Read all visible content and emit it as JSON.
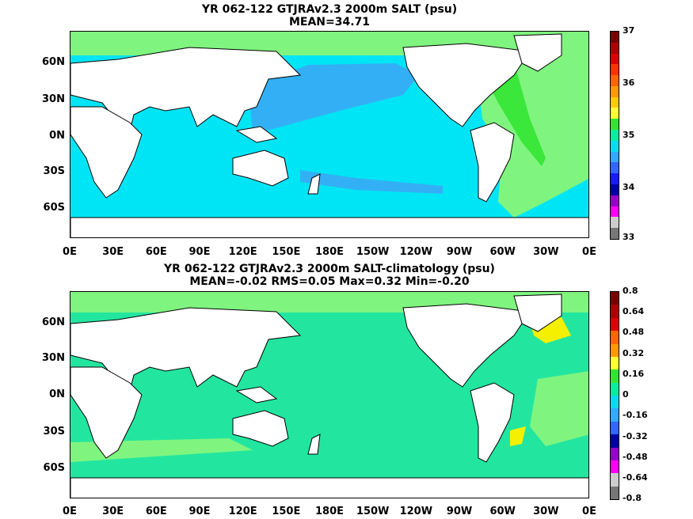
{
  "top_panel": {
    "title_line1": "YR 062-122 GTJRAv2.3 2000m SALT (psu)",
    "title_line2": "MEAN=34.71",
    "colorbar_labels": [
      "37",
      "36",
      "35",
      "34",
      "33"
    ]
  },
  "bottom_panel": {
    "title_line1": "YR 062-122 GTJRAv2.3 2000m SALT-climatology (psu)",
    "title_line2": "MEAN=-0.02   RMS=0.05   Max=0.32   Min=-0.20",
    "colorbar_labels": [
      "0.8",
      "0.64",
      "0.48",
      "0.32",
      "0.16",
      "0",
      "-0.16",
      "-0.32",
      "-0.48",
      "-0.64",
      "-0.8"
    ]
  },
  "lat_labels": [
    "60N",
    "30N",
    "0N",
    "30S",
    "60S"
  ],
  "lon_labels": [
    "0E",
    "30E",
    "60E",
    "90E",
    "120E",
    "150E",
    "180E",
    "150W",
    "120W",
    "90W",
    "60W",
    "30W",
    "0E"
  ],
  "colors": {
    "land": "#ffffff",
    "salt_pacific": "#33b0f5",
    "salt_ocean": "#00e5f5",
    "salt_atlantic": "#7ff57f",
    "salt_green_strip": "#33e533",
    "anom_zero": "#22e6a0",
    "anom_light": "#7ff57f",
    "anom_yellow": "#f5f000",
    "colorbar_top": [
      "#7a0000",
      "#b00000",
      "#e00000",
      "#ff3300",
      "#ff6600",
      "#ff9900",
      "#ffcc00",
      "#ffff33",
      "#33e533",
      "#00f0a0",
      "#00e0f0",
      "#33aaff",
      "#3366ff",
      "#1a1aff",
      "#0000aa",
      "#9900cc",
      "#ff00ff",
      "#cccccc",
      "#777777"
    ],
    "colorbar_bottom": [
      "#7a0000",
      "#b00000",
      "#e00000",
      "#ff6600",
      "#ff9900",
      "#ffff33",
      "#33e533",
      "#00f0a0",
      "#00e0f0",
      "#33aaff",
      "#3366ff",
      "#0000aa",
      "#9900cc",
      "#ff00ff",
      "#cccccc",
      "#777777"
    ]
  }
}
